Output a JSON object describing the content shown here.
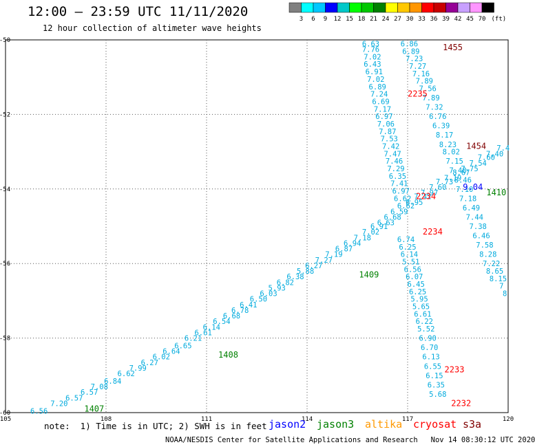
{
  "header": {
    "title": "12:00 – 23:59 UTC 11/11/2020",
    "subtitle": "12 hour collection of altimeter wave heights"
  },
  "footer": {
    "note": "note:  1) Time is in UTC; 2) SWH is in feet",
    "credit": "NOAA/NESDIS Center for Satellite Applications and Research",
    "timestamp": "Nov 14 08:30:12 UTC 2020",
    "satellites": [
      {
        "name": "jason2",
        "color": "#0000ff"
      },
      {
        "name": "jason3",
        "color": "#008000"
      },
      {
        "name": "altika",
        "color": "#ff9900"
      },
      {
        "name": "cryosat",
        "color": "#ff0000"
      },
      {
        "name": "s3a",
        "color": "#800000"
      }
    ]
  },
  "colorbar": {
    "unit": "(ft)",
    "labels": [
      "3",
      "6",
      "9",
      "12",
      "15",
      "18",
      "21",
      "24",
      "27",
      "30",
      "33",
      "36",
      "39",
      "42",
      "45",
      "70"
    ],
    "colors": [
      "#808080",
      "#00ffff",
      "#00c8ff",
      "#0000ff",
      "#00c8c8",
      "#00ff00",
      "#00c800",
      "#008000",
      "#ffff00",
      "#ffc800",
      "#ff9600",
      "#ff0000",
      "#c80000",
      "#960096",
      "#c8a0ff",
      "#ff96ff",
      "#000000"
    ]
  },
  "chart_data": {
    "type": "scatter",
    "title": "12:00 – 23:59 UTC 11/11/2020",
    "xlim": [
      105,
      120
    ],
    "ylim": [
      -60,
      -50
    ],
    "x_ticks": [
      105,
      108,
      111,
      114,
      117,
      120
    ],
    "x_tick_labels": [
      "105",
      "108",
      "111",
      "114",
      "117",
      "120"
    ],
    "y_ticks": [
      -50,
      -52,
      -54,
      -56,
      -58,
      -60
    ],
    "y_tick_labels": [
      "-50",
      "-52",
      "-54",
      "-56",
      "-58",
      "-60"
    ],
    "grid": true,
    "value_color": "#00aadd",
    "tracks": [
      {
        "name": "pass-southwest-to-northeast",
        "points": [
          {
            "x": 106.0,
            "y": -59.95,
            "v": "6.56"
          },
          {
            "x": 106.6,
            "y": -59.75,
            "v": "7.20"
          },
          {
            "x": 107.05,
            "y": -59.6,
            "v": "6.57"
          },
          {
            "x": 107.5,
            "y": -59.45,
            "v": "6.57"
          },
          {
            "x": 107.8,
            "y": -59.3,
            "v": "7.08"
          },
          {
            "x": 108.2,
            "y": -59.15,
            "v": "6.84"
          },
          {
            "x": 108.6,
            "y": -58.95,
            "v": "6.62"
          },
          {
            "x": 108.95,
            "y": -58.8,
            "v": "7.99"
          },
          {
            "x": 109.3,
            "y": -58.65,
            "v": "6.27"
          },
          {
            "x": 109.65,
            "y": -58.5,
            "v": "6.02"
          },
          {
            "x": 109.95,
            "y": -58.35,
            "v": "6.64"
          },
          {
            "x": 110.3,
            "y": -58.2,
            "v": "6.65"
          },
          {
            "x": 110.6,
            "y": -58.0,
            "v": "6.21"
          },
          {
            "x": 110.9,
            "y": -57.85,
            "v": "6.61"
          },
          {
            "x": 111.15,
            "y": -57.7,
            "v": "6.14"
          },
          {
            "x": 111.45,
            "y": -57.55,
            "v": "6.54"
          },
          {
            "x": 111.75,
            "y": -57.4,
            "v": "6.68"
          },
          {
            "x": 112.0,
            "y": -57.25,
            "v": "6.78"
          },
          {
            "x": 112.25,
            "y": -57.1,
            "v": "6.41"
          },
          {
            "x": 112.55,
            "y": -56.95,
            "v": "6.50"
          },
          {
            "x": 112.85,
            "y": -56.8,
            "v": "6.03"
          },
          {
            "x": 113.1,
            "y": -56.65,
            "v": "5.93"
          },
          {
            "x": 113.35,
            "y": -56.5,
            "v": "6.82"
          },
          {
            "x": 113.65,
            "y": -56.35,
            "v": "6.38"
          },
          {
            "x": 113.95,
            "y": -56.2,
            "v": "5.88"
          },
          {
            "x": 114.2,
            "y": -56.05,
            "v": "6.27"
          },
          {
            "x": 114.5,
            "y": -55.9,
            "v": "7.27"
          },
          {
            "x": 114.8,
            "y": -55.75,
            "v": "7.19"
          },
          {
            "x": 115.1,
            "y": -55.6,
            "v": "6.87"
          },
          {
            "x": 115.35,
            "y": -55.45,
            "v": "6.94"
          },
          {
            "x": 115.65,
            "y": -55.3,
            "v": "7.18"
          },
          {
            "x": 115.9,
            "y": -55.15,
            "v": "7.02"
          },
          {
            "x": 116.15,
            "y": -55.0,
            "v": "6.91"
          },
          {
            "x": 116.35,
            "y": -54.9,
            "v": "6.63"
          },
          {
            "x": 116.55,
            "y": -54.75,
            "v": "6.68"
          },
          {
            "x": 116.75,
            "y": -54.6,
            "v": "6.59"
          },
          {
            "x": 116.95,
            "y": -54.45,
            "v": "6.62"
          },
          {
            "x": 117.2,
            "y": -54.35,
            "v": "6.95"
          },
          {
            "x": 117.45,
            "y": -54.2,
            "v": "7.42"
          },
          {
            "x": 117.65,
            "y": -54.1,
            "v": "7.97"
          },
          {
            "x": 117.9,
            "y": -53.95,
            "v": "7.60"
          },
          {
            "x": 118.1,
            "y": -53.8,
            "v": "7.73"
          },
          {
            "x": 118.35,
            "y": -53.7,
            "v": "7.19"
          },
          {
            "x": 118.6,
            "y": -53.55,
            "v": "8.67"
          },
          {
            "x": 118.85,
            "y": -53.45,
            "v": "7.75"
          },
          {
            "x": 119.1,
            "y": -53.3,
            "v": "7.54"
          },
          {
            "x": 119.35,
            "y": -53.15,
            "v": "7.60"
          },
          {
            "x": 119.6,
            "y": -53.05,
            "v": "7.40"
          },
          {
            "x": 119.85,
            "y": -52.9,
            "v": "7.4"
          }
        ]
      },
      {
        "name": "pass-north-to-south-west",
        "points": [
          {
            "x": 115.9,
            "y": -50.1,
            "v": "6.63"
          },
          {
            "x": 115.9,
            "y": -50.25,
            "v": "7.76"
          },
          {
            "x": 115.95,
            "y": -50.45,
            "v": "7.02"
          },
          {
            "x": 115.95,
            "y": -50.65,
            "v": "6.43"
          },
          {
            "x": 116.0,
            "y": -50.85,
            "v": "6.91"
          },
          {
            "x": 116.05,
            "y": -51.05,
            "v": "7.02"
          },
          {
            "x": 116.1,
            "y": -51.25,
            "v": "6.89"
          },
          {
            "x": 116.15,
            "y": -51.45,
            "v": "7.24"
          },
          {
            "x": 116.2,
            "y": -51.65,
            "v": "6.69"
          },
          {
            "x": 116.25,
            "y": -51.85,
            "v": "7.17"
          },
          {
            "x": 116.3,
            "y": -52.05,
            "v": "6.97"
          },
          {
            "x": 116.35,
            "y": -52.25,
            "v": "7.06"
          },
          {
            "x": 116.4,
            "y": -52.45,
            "v": "7.87"
          },
          {
            "x": 116.45,
            "y": -52.65,
            "v": "7.53"
          },
          {
            "x": 116.5,
            "y": -52.85,
            "v": "7.42"
          },
          {
            "x": 116.55,
            "y": -53.05,
            "v": "7.47"
          },
          {
            "x": 116.6,
            "y": -53.25,
            "v": "7.46"
          },
          {
            "x": 116.65,
            "y": -53.45,
            "v": "7.29"
          },
          {
            "x": 116.7,
            "y": -53.65,
            "v": "6.35"
          },
          {
            "x": 116.75,
            "y": -53.85,
            "v": "7.41"
          },
          {
            "x": 116.8,
            "y": -54.05,
            "v": "6.97"
          },
          {
            "x": 116.85,
            "y": -54.25,
            "v": "6.62"
          },
          {
            "x": 116.95,
            "y": -55.35,
            "v": "6.74"
          },
          {
            "x": 117.0,
            "y": -55.55,
            "v": "6.25"
          },
          {
            "x": 117.05,
            "y": -55.75,
            "v": "6.14"
          },
          {
            "x": 117.1,
            "y": -55.95,
            "v": "5.51"
          },
          {
            "x": 117.15,
            "y": -56.15,
            "v": "6.56"
          },
          {
            "x": 117.2,
            "y": -56.35,
            "v": "6.07"
          },
          {
            "x": 117.25,
            "y": -56.55,
            "v": "6.45"
          },
          {
            "x": 117.3,
            "y": -56.75,
            "v": "6.25"
          },
          {
            "x": 117.35,
            "y": -56.95,
            "v": "5.95"
          },
          {
            "x": 117.4,
            "y": -57.15,
            "v": "5.65"
          },
          {
            "x": 117.45,
            "y": -57.35,
            "v": "6.61"
          },
          {
            "x": 117.5,
            "y": -57.55,
            "v": "6.22"
          },
          {
            "x": 117.55,
            "y": -57.75,
            "v": "5.52"
          },
          {
            "x": 117.6,
            "y": -58.0,
            "v": "6.90"
          },
          {
            "x": 117.65,
            "y": -58.25,
            "v": "6.70"
          },
          {
            "x": 117.7,
            "y": -58.5,
            "v": "6.13"
          },
          {
            "x": 117.75,
            "y": -58.75,
            "v": "6.55"
          },
          {
            "x": 117.8,
            "y": -59.0,
            "v": "6.15"
          },
          {
            "x": 117.85,
            "y": -59.25,
            "v": "6.35"
          },
          {
            "x": 117.9,
            "y": -59.5,
            "v": "5.68"
          }
        ]
      },
      {
        "name": "pass-north-to-south-east",
        "points": [
          {
            "x": 117.05,
            "y": -50.1,
            "v": "6.86"
          },
          {
            "x": 117.1,
            "y": -50.3,
            "v": "6.89"
          },
          {
            "x": 117.2,
            "y": -50.5,
            "v": "7.23"
          },
          {
            "x": 117.3,
            "y": -50.7,
            "v": "7.27"
          },
          {
            "x": 117.4,
            "y": -50.9,
            "v": "7.16"
          },
          {
            "x": 117.5,
            "y": -51.1,
            "v": "7.89"
          },
          {
            "x": 117.6,
            "y": -51.3,
            "v": "7.56"
          },
          {
            "x": 117.7,
            "y": -51.55,
            "v": "7.89"
          },
          {
            "x": 117.8,
            "y": -51.8,
            "v": "7.32"
          },
          {
            "x": 117.9,
            "y": -52.05,
            "v": "6.76"
          },
          {
            "x": 118.0,
            "y": -52.3,
            "v": "6.39"
          },
          {
            "x": 118.1,
            "y": -52.55,
            "v": "8.17"
          },
          {
            "x": 118.2,
            "y": -52.8,
            "v": "8.23"
          },
          {
            "x": 118.3,
            "y": -53.0,
            "v": "8.02"
          },
          {
            "x": 118.4,
            "y": -53.25,
            "v": "7.15"
          },
          {
            "x": 118.5,
            "y": -53.5,
            "v": "7.48"
          },
          {
            "x": 118.65,
            "y": -53.75,
            "v": "8.46"
          },
          {
            "x": 118.7,
            "y": -54.0,
            "v": "7.10"
          },
          {
            "x": 118.8,
            "y": -54.25,
            "v": "7.18"
          },
          {
            "x": 118.9,
            "y": -54.5,
            "v": "6.49"
          },
          {
            "x": 119.0,
            "y": -54.75,
            "v": "7.44"
          },
          {
            "x": 119.1,
            "y": -55.0,
            "v": "7.38"
          },
          {
            "x": 119.2,
            "y": -55.25,
            "v": "6.46"
          },
          {
            "x": 119.3,
            "y": -55.5,
            "v": "7.58"
          },
          {
            "x": 119.4,
            "y": -55.75,
            "v": "8.28"
          },
          {
            "x": 119.5,
            "y": -56.0,
            "v": "7.22"
          },
          {
            "x": 119.6,
            "y": -56.2,
            "v": "8.65"
          },
          {
            "x": 119.7,
            "y": -56.4,
            "v": "8.15"
          },
          {
            "x": 119.8,
            "y": -56.6,
            "v": "7"
          },
          {
            "x": 119.9,
            "y": -56.8,
            "v": "8"
          }
        ]
      }
    ],
    "pass_labels": [
      {
        "text": "1455",
        "x": 118.05,
        "y": -50.2,
        "color": "#800000"
      },
      {
        "text": "2235",
        "x": 117.0,
        "y": -51.45,
        "color": "#ff0000"
      },
      {
        "text": "1454",
        "x": 118.75,
        "y": -52.85,
        "color": "#800000"
      },
      {
        "text": "9.04",
        "x": 118.65,
        "y": -53.95,
        "color": "#0000ff"
      },
      {
        "text": "1410",
        "x": 119.35,
        "y": -54.1,
        "color": "#008000"
      },
      {
        "text": "2234",
        "x": 117.25,
        "y": -54.2,
        "color": "#ff0000"
      },
      {
        "text": "2234",
        "x": 117.45,
        "y": -55.15,
        "color": "#ff0000"
      },
      {
        "text": "1409",
        "x": 115.55,
        "y": -56.3,
        "color": "#008000"
      },
      {
        "text": "1408",
        "x": 111.35,
        "y": -58.45,
        "color": "#008000"
      },
      {
        "text": "2233",
        "x": 118.1,
        "y": -58.85,
        "color": "#ff0000"
      },
      {
        "text": "2232",
        "x": 118.3,
        "y": -59.75,
        "color": "#ff0000"
      },
      {
        "text": "1407",
        "x": 107.35,
        "y": -59.9,
        "color": "#008000"
      }
    ]
  }
}
